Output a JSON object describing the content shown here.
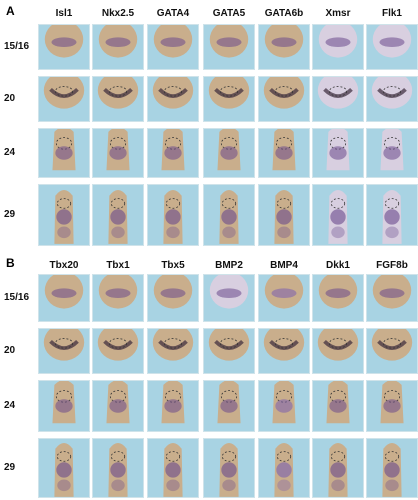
{
  "panels": [
    {
      "letter": "A",
      "genes": [
        "Isl1",
        "Nkx2.5",
        "GATA4",
        "GATA5",
        "GATA6b",
        "Xmsr",
        "Flk1"
      ],
      "stages": [
        "15/16",
        "20",
        "24",
        "29"
      ]
    },
    {
      "letter": "B",
      "genes": [
        "Tbx20",
        "Tbx1",
        "Tbx5",
        "BMP2",
        "BMP4",
        "Dkk1",
        "FGF8b"
      ],
      "stages": [
        "15/16",
        "20",
        "24",
        "29"
      ]
    }
  ],
  "colors": {
    "background_tile": "#a8d3e3",
    "embryo_tan": "#c9ae8c",
    "stain_purple": "#6b4a8c",
    "stain_dark": "#3a2a3a",
    "pale_embryo": "#d8cfe0"
  }
}
